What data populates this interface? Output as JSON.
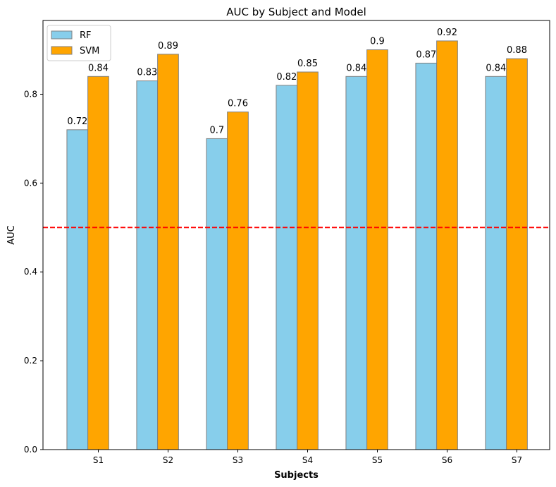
{
  "chart_data": {
    "type": "bar",
    "title": "AUC by Subject and Model",
    "xlabel": "Subjects",
    "ylabel": "AUC",
    "categories": [
      "S1",
      "S2",
      "S3",
      "S4",
      "S5",
      "S6",
      "S7"
    ],
    "series": [
      {
        "name": "RF",
        "color": "#87ceeb",
        "values": [
          0.72,
          0.83,
          0.7,
          0.82,
          0.84,
          0.87,
          0.84
        ]
      },
      {
        "name": "SVM",
        "color": "#ffa500",
        "values": [
          0.84,
          0.89,
          0.76,
          0.85,
          0.9,
          0.92,
          0.88
        ]
      }
    ],
    "data_labels": [
      [
        "0.72",
        "0.83",
        "0.7",
        "0.82",
        "0.84",
        "0.87",
        "0.84"
      ],
      [
        "0.84",
        "0.89",
        "0.76",
        "0.85",
        "0.9",
        "0.92",
        "0.88"
      ]
    ],
    "ylim": [
      0,
      0.966
    ],
    "yticks": [
      0.0,
      0.2,
      0.4,
      0.6,
      0.8
    ],
    "ytick_labels": [
      "0.0",
      "0.2",
      "0.4",
      "0.6",
      "0.8"
    ],
    "reference_line": {
      "y": 0.5,
      "color": "#ff0000",
      "style": "dashed"
    },
    "bar_edge_color": "#808080",
    "grid": false,
    "legend_position": "top-left"
  }
}
